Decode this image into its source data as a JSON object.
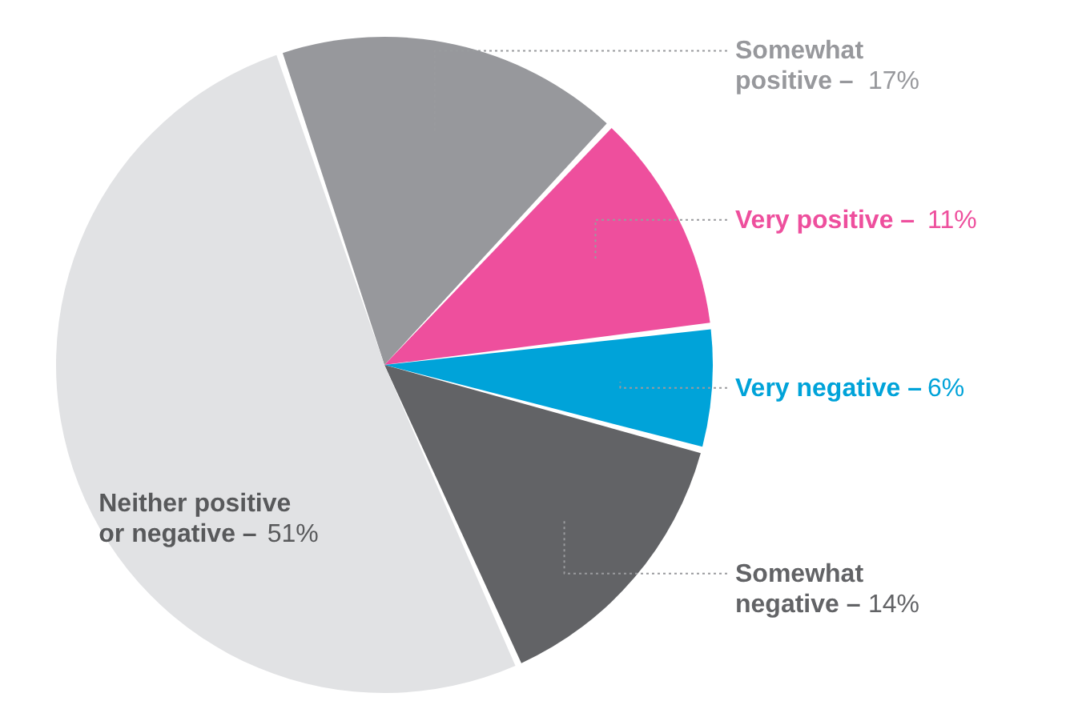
{
  "chart_data": {
    "type": "pie",
    "categories": [
      "Somewhat positive –",
      "Very positive –",
      "Very negative –",
      "Somewhat negative –",
      "Neither positive or negative –"
    ],
    "values": [
      17,
      11,
      6,
      14,
      51
    ],
    "colors": [
      "#97989c",
      "#ee4f9d",
      "#00a3d9",
      "#626366",
      "#e1e2e4"
    ],
    "value_labels": [
      "17%",
      "11%",
      "6%",
      "14%",
      "51%"
    ],
    "legend": false
  }
}
